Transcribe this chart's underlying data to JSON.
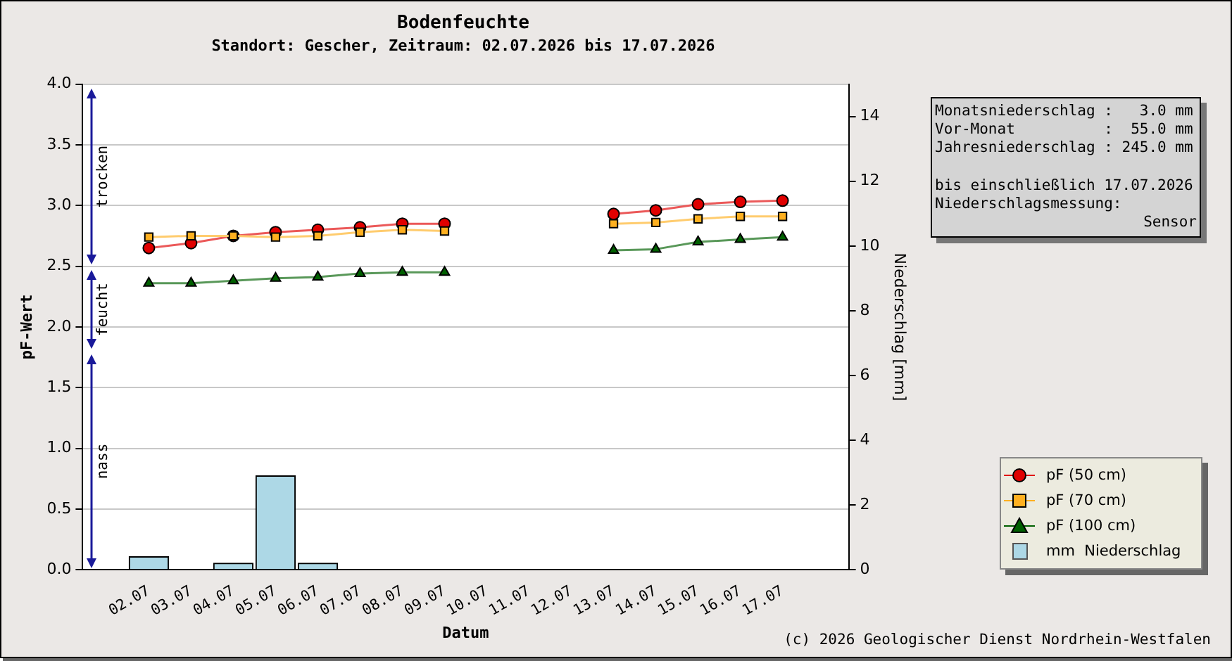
{
  "chart_data": {
    "type": "line",
    "title": "Bodenfeuchte",
    "subtitle": "Standort: Gescher, Zeitraum: 02.07.2026 bis 17.07.2026",
    "xlabel": "Datum",
    "ylabel": "pF-Wert",
    "y2label": "Niederschlag [mm]",
    "categories": [
      "02.07",
      "03.07",
      "04.07",
      "05.07",
      "06.07",
      "07.07",
      "08.07",
      "09.07",
      "10.07",
      "11.07",
      "12.07",
      "13.07",
      "14.07",
      "15.07",
      "16.07",
      "17.07"
    ],
    "series": [
      {
        "name": "pF (50 cm)",
        "color": "#e00000",
        "marker": "circle",
        "values": [
          2.65,
          2.69,
          2.75,
          2.78,
          2.8,
          2.82,
          2.85,
          2.85,
          null,
          null,
          null,
          2.93,
          2.96,
          3.01,
          3.03,
          3.04
        ]
      },
      {
        "name": "pF (70 cm)",
        "color": "#ffb020",
        "marker": "square",
        "values": [
          2.74,
          2.75,
          2.75,
          2.74,
          2.75,
          2.78,
          2.8,
          2.79,
          null,
          null,
          null,
          2.85,
          2.86,
          2.89,
          2.91,
          2.91
        ]
      },
      {
        "name": "pF (100 cm)",
        "color": "#006000",
        "marker": "triangle",
        "values": [
          2.36,
          2.36,
          2.38,
          2.4,
          2.41,
          2.44,
          2.45,
          2.45,
          null,
          null,
          null,
          2.63,
          2.64,
          2.7,
          2.72,
          2.74
        ]
      },
      {
        "name": "mm  Niederschlag",
        "type": "bar",
        "axis": "y2",
        "color": "#add8e6",
        "values": [
          0.4,
          null,
          0.2,
          2.9,
          0.2,
          null,
          null,
          null,
          null,
          null,
          null,
          null,
          null,
          null,
          null,
          null
        ]
      }
    ],
    "ylim": [
      0,
      4
    ],
    "yticks": [
      {
        "value": 0,
        "label": "0.0"
      },
      {
        "value": 0.5,
        "label": "0.5"
      },
      {
        "value": 1,
        "label": "1.0"
      },
      {
        "value": 1.5,
        "label": "1.5"
      },
      {
        "value": 2,
        "label": "2.0"
      },
      {
        "value": 2.5,
        "label": "2.5"
      },
      {
        "value": 3,
        "label": "3.0"
      },
      {
        "value": 3.5,
        "label": "3.5"
      },
      {
        "value": 4,
        "label": "4.0"
      }
    ],
    "y2lim": [
      0,
      15
    ],
    "y2ticks": [
      0,
      2,
      4,
      6,
      8,
      10,
      12,
      14
    ],
    "grid": "y",
    "legend": "bottom right",
    "annotations": [
      "trocken",
      "feucht",
      "nass",
      "Monatsniederschlag :   3.0 mm",
      "Vor-Monat          :  55.0 mm",
      "Jahresniederschlag : 245.0 mm",
      "bis einschließlich 17.07.2026",
      "Niederschlagsmessung:",
      "Sensor",
      "(c) 2026 Geologischer Dienst Nordrhein-Westfalen"
    ]
  }
}
